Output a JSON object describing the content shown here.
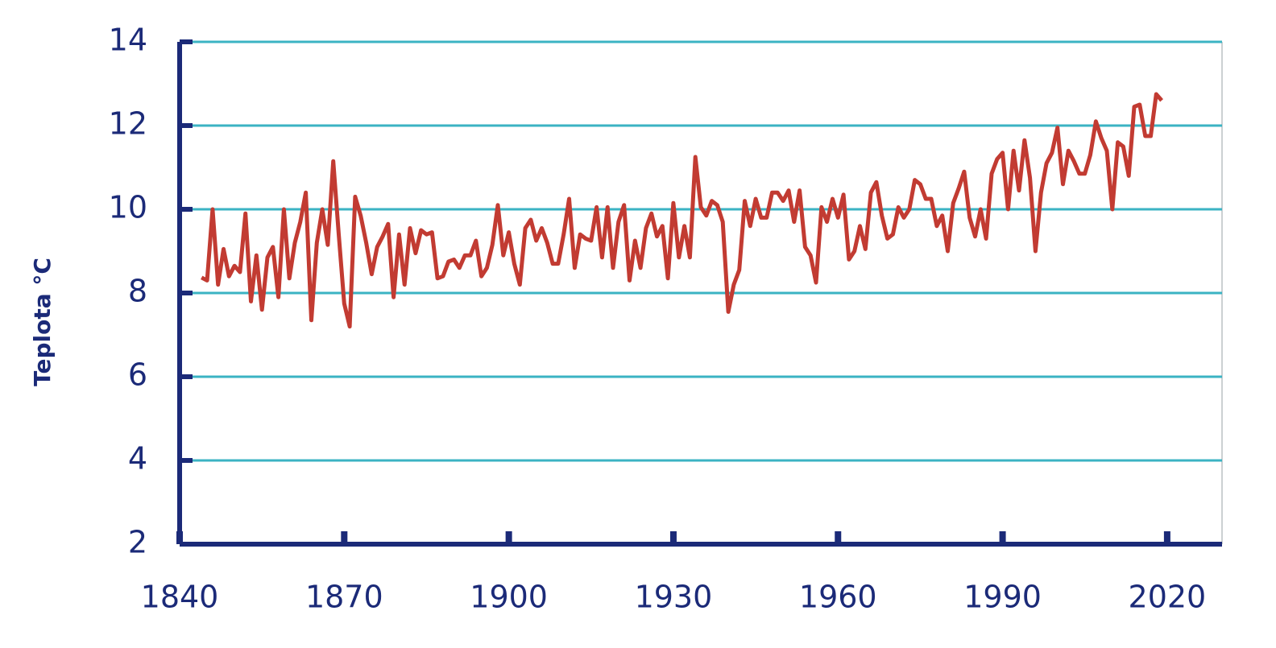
{
  "chart_data": {
    "type": "line",
    "y_label": "Teplota °C",
    "color": "#c23b32",
    "grid_color": "#3bb3c3",
    "axis_color": "#1b2a78",
    "grid": true,
    "xlim": [
      1840,
      2030
    ],
    "xticks": [
      1840,
      1870,
      1900,
      1930,
      1960,
      1990,
      2020
    ],
    "ylim": [
      2,
      14
    ],
    "yticks": [
      2,
      4,
      6,
      8,
      10,
      12,
      14
    ],
    "x": [
      1844,
      1845,
      1846,
      1847,
      1848,
      1849,
      1850,
      1851,
      1852,
      1853,
      1854,
      1855,
      1856,
      1857,
      1858,
      1859,
      1860,
      1861,
      1862,
      1863,
      1864,
      1865,
      1866,
      1867,
      1868,
      1869,
      1870,
      1871,
      1872,
      1873,
      1874,
      1875,
      1876,
      1877,
      1878,
      1879,
      1880,
      1881,
      1882,
      1883,
      1884,
      1885,
      1886,
      1887,
      1888,
      1889,
      1890,
      1891,
      1892,
      1893,
      1894,
      1895,
      1896,
      1897,
      1898,
      1899,
      1900,
      1901,
      1902,
      1903,
      1904,
      1905,
      1906,
      1907,
      1908,
      1909,
      1910,
      1911,
      1912,
      1913,
      1914,
      1915,
      1916,
      1917,
      1918,
      1919,
      1920,
      1921,
      1922,
      1923,
      1924,
      1925,
      1926,
      1927,
      1928,
      1929,
      1930,
      1931,
      1932,
      1933,
      1934,
      1935,
      1936,
      1937,
      1938,
      1939,
      1940,
      1941,
      1942,
      1943,
      1944,
      1945,
      1946,
      1947,
      1948,
      1949,
      1950,
      1951,
      1952,
      1953,
      1954,
      1955,
      1956,
      1957,
      1958,
      1959,
      1960,
      1961,
      1962,
      1963,
      1964,
      1965,
      1966,
      1967,
      1968,
      1969,
      1970,
      1971,
      1972,
      1973,
      1974,
      1975,
      1976,
      1977,
      1978,
      1979,
      1980,
      1981,
      1982,
      1983,
      1984,
      1985,
      1986,
      1987,
      1988,
      1989,
      1990,
      1991,
      1992,
      1993,
      1994,
      1995,
      1996,
      1997,
      1998,
      1999,
      2000,
      2001,
      2002,
      2003,
      2004,
      2005,
      2006,
      2007,
      2008,
      2009,
      2010,
      2011,
      2012,
      2013,
      2014,
      2015,
      2016,
      2017,
      2018,
      2019
    ],
    "values": [
      8.37,
      8.3,
      10.0,
      8.2,
      9.05,
      8.4,
      8.65,
      8.5,
      9.9,
      7.8,
      8.9,
      7.6,
      8.85,
      9.1,
      7.9,
      10.0,
      8.35,
      9.2,
      9.7,
      10.4,
      7.35,
      9.2,
      10.0,
      9.15,
      11.15,
      9.4,
      7.75,
      7.2,
      10.3,
      9.85,
      9.2,
      8.45,
      9.1,
      9.35,
      9.65,
      7.9,
      9.4,
      8.2,
      9.55,
      8.95,
      9.5,
      9.4,
      9.45,
      8.35,
      8.4,
      8.75,
      8.8,
      8.6,
      8.9,
      8.9,
      9.25,
      8.4,
      8.6,
      9.15,
      10.1,
      8.9,
      9.45,
      8.7,
      8.2,
      9.55,
      9.75,
      9.25,
      9.55,
      9.2,
      8.7,
      8.7,
      9.4,
      10.25,
      8.6,
      9.4,
      9.3,
      9.25,
      10.05,
      8.85,
      10.05,
      8.6,
      9.7,
      10.1,
      8.3,
      9.25,
      8.6,
      9.55,
      9.9,
      9.35,
      9.6,
      8.35,
      10.15,
      8.85,
      9.6,
      8.85,
      11.25,
      10.05,
      9.85,
      10.2,
      10.1,
      9.7,
      7.55,
      8.2,
      8.55,
      10.2,
      9.6,
      10.25,
      9.8,
      9.8,
      10.4,
      10.4,
      10.2,
      10.45,
      9.7,
      10.45,
      9.1,
      8.9,
      8.25,
      10.05,
      9.7,
      10.25,
      9.8,
      10.35,
      8.8,
      9.0,
      9.6,
      9.05,
      10.4,
      10.65,
      9.85,
      9.3,
      9.4,
      10.05,
      9.8,
      10.0,
      10.7,
      10.6,
      10.25,
      10.25,
      9.6,
      9.85,
      9.0,
      10.15,
      10.5,
      10.9,
      9.8,
      9.35,
      10.0,
      9.3,
      10.85,
      11.2,
      11.35,
      10.0,
      11.4,
      10.45,
      11.65,
      10.75,
      9.0,
      10.4,
      11.1,
      11.35,
      11.95,
      10.6,
      11.4,
      11.15,
      10.85,
      10.85,
      11.3,
      12.1,
      11.7,
      11.4,
      10.0,
      11.6,
      11.5,
      10.8,
      12.45,
      12.5,
      11.75,
      11.75,
      12.75,
      12.6
    ]
  }
}
